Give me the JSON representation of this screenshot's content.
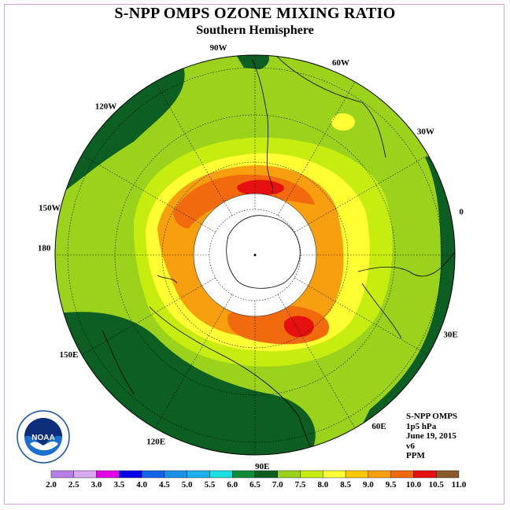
{
  "title": "S-NPP OMPS OZONE MIXING RATIO",
  "subtitle": "Southern Hemisphere",
  "logo": {
    "text": "NOAA",
    "ring_text": "NATIONAL OCEANIC AND ATMOSPHERIC ADMINISTRATION · U.S. DEPARTMENT OF COMMERCE"
  },
  "info": {
    "instrument": "S-NPP OMPS",
    "level": "1p5 hPa",
    "date": "June 19, 2015",
    "version": "v6",
    "units": "PPM"
  },
  "longitude_labels": [
    "90W",
    "60W",
    "30W",
    "0",
    "30E",
    "60E",
    "90E",
    "120E",
    "150E",
    "180",
    "150W",
    "120W"
  ],
  "colorbar": {
    "ticks": [
      "2.0",
      "2.5",
      "3.0",
      "3.5",
      "4.0",
      "4.5",
      "5.0",
      "5.5",
      "6.0",
      "6.5",
      "7.0",
      "7.5",
      "8.0",
      "8.5",
      "9.0",
      "9.5",
      "10.0",
      "10.5",
      "11.0"
    ],
    "colors": [
      "#b77fe6",
      "#d8a8f0",
      "#e600e6",
      "#0000e6",
      "#1462e6",
      "#1c8fe6",
      "#1cb0ec",
      "#18e0e0",
      "#118a3a",
      "#0d5e23",
      "#9bd21c",
      "#c6ec10",
      "#ffff33",
      "#ffc800",
      "#f79f0e",
      "#f26a0e",
      "#e61010",
      "#8b5a2b"
    ]
  },
  "map_colors": {
    "dark_green": "#0d5e23",
    "light_green": "#9bd21c",
    "yellow_green": "#c6ec10",
    "yellow": "#ffff33",
    "orange": "#f79f0e",
    "dark_orange": "#f26a0e",
    "red": "#e61010",
    "polar_night": "#ffffff"
  }
}
